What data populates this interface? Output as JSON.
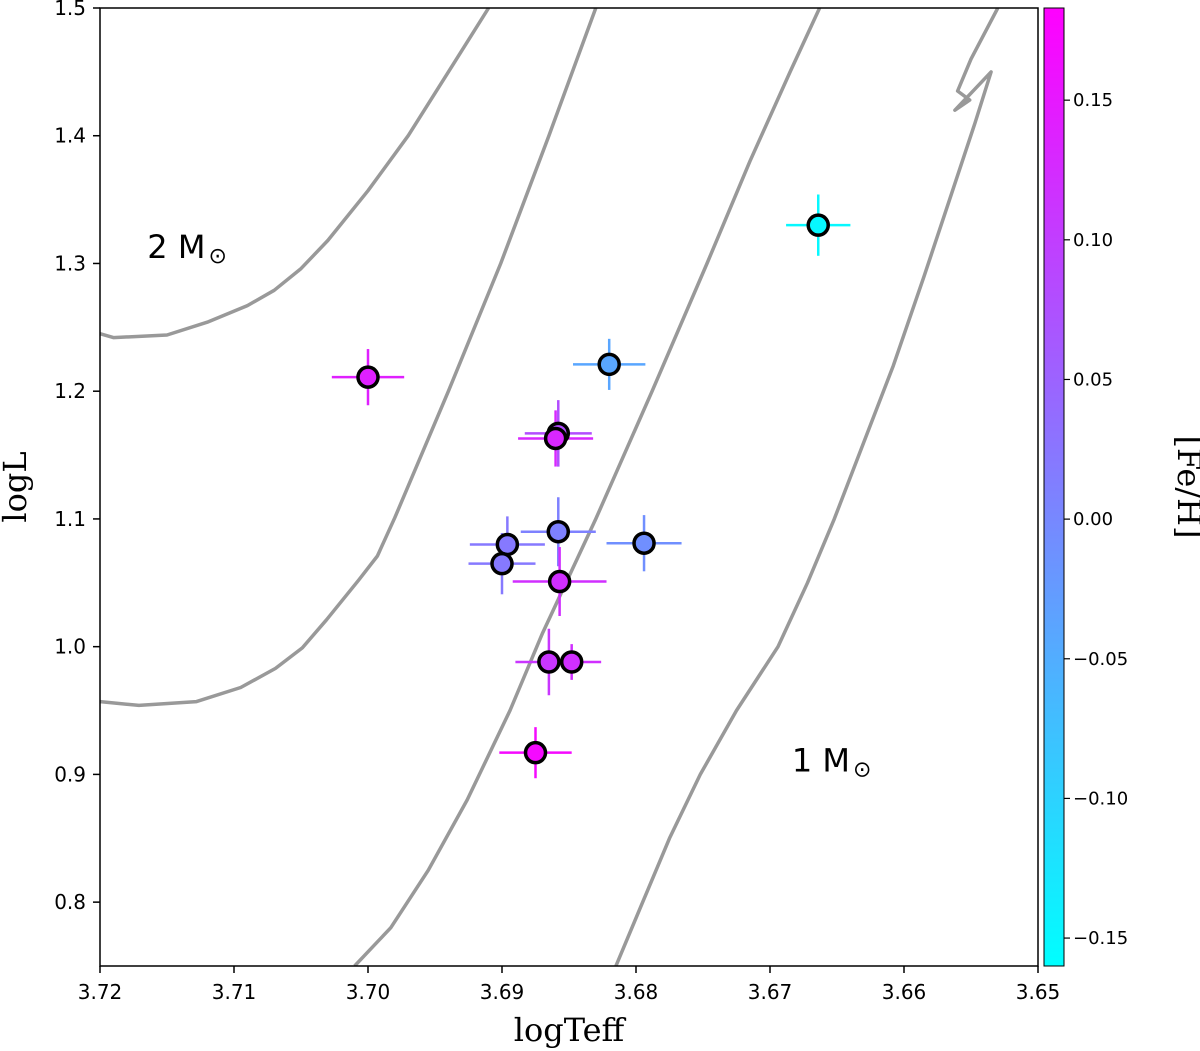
{
  "chart_data": {
    "type": "scatter",
    "title": "",
    "xlabel": "logTeff",
    "ylabel": "logL",
    "xlim": [
      3.72,
      3.65
    ],
    "ylim": [
      0.75,
      1.5
    ],
    "x_inverted": true,
    "xticks": [
      "3.72",
      "3.71",
      "3.70",
      "3.69",
      "3.68",
      "3.67",
      "3.66",
      "3.65"
    ],
    "yticks": [
      "0.8",
      "0.9",
      "1.0",
      "1.1",
      "1.2",
      "1.3",
      "1.4",
      "1.5"
    ],
    "colorbar": {
      "label": "[Fe/H]",
      "range": [
        -0.16,
        0.183
      ],
      "low_color": "#00ffff",
      "high_color": "#ff00ff",
      "ticks": [
        "−0.15",
        "−0.10",
        "−0.05",
        "0.00",
        "0.05",
        "0.10",
        "0.15"
      ]
    },
    "points": [
      {
        "logTeff": 3.7,
        "logL": 1.211,
        "xerr": 0.0027,
        "yerr": 0.022,
        "feh": 0.14
      },
      {
        "logTeff": 3.682,
        "logL": 1.221,
        "xerr": 0.0027,
        "yerr": 0.02,
        "feh": -0.04
      },
      {
        "logTeff": 3.6664,
        "logL": 1.33,
        "xerr": 0.0024,
        "yerr": 0.024,
        "feh": -0.15
      },
      {
        "logTeff": 3.6858,
        "logL": 1.167,
        "xerr": 0.0025,
        "yerr": 0.026,
        "feh": 0.08
      },
      {
        "logTeff": 3.686,
        "logL": 1.163,
        "xerr": 0.0028,
        "yerr": 0.022,
        "feh": 0.13
      },
      {
        "logTeff": 3.6858,
        "logL": 1.09,
        "xerr": 0.0028,
        "yerr": 0.027,
        "feh": 0.01
      },
      {
        "logTeff": 3.6896,
        "logL": 1.08,
        "xerr": 0.0028,
        "yerr": 0.022,
        "feh": 0.02
      },
      {
        "logTeff": 3.69,
        "logL": 1.065,
        "xerr": 0.0025,
        "yerr": 0.024,
        "feh": 0.02
      },
      {
        "logTeff": 3.6794,
        "logL": 1.081,
        "xerr": 0.0028,
        "yerr": 0.022,
        "feh": -0.01
      },
      {
        "logTeff": 3.6857,
        "logL": 1.051,
        "xerr": 0.0035,
        "yerr": 0.027,
        "feh": 0.12
      },
      {
        "logTeff": 3.6865,
        "logL": 0.988,
        "xerr": 0.0025,
        "yerr": 0.026,
        "feh": 0.11
      },
      {
        "logTeff": 3.6848,
        "logL": 0.988,
        "xerr": 0.0022,
        "yerr": 0.014,
        "feh": 0.12
      },
      {
        "logTeff": 3.6875,
        "logL": 0.917,
        "xerr": 0.0027,
        "yerr": 0.02,
        "feh": 0.17
      }
    ],
    "tracks": [
      {
        "name": "2 Msun",
        "points": [
          [
            3.72,
            1.245
          ],
          [
            3.719,
            1.242
          ],
          [
            3.715,
            1.244
          ],
          [
            3.712,
            1.254
          ],
          [
            3.709,
            1.267
          ],
          [
            3.707,
            1.279
          ],
          [
            3.705,
            1.296
          ],
          [
            3.703,
            1.318
          ],
          [
            3.7,
            1.357
          ],
          [
            3.697,
            1.4
          ],
          [
            3.694,
            1.45
          ],
          [
            3.691,
            1.5
          ]
        ]
      },
      {
        "name": "mid-1",
        "points": [
          [
            3.72,
            0.957
          ],
          [
            3.7171,
            0.954
          ],
          [
            3.7128,
            0.957
          ],
          [
            3.7095,
            0.968
          ],
          [
            3.7069,
            0.983
          ],
          [
            3.7049,
            0.999
          ],
          [
            3.7031,
            1.021
          ],
          [
            3.7007,
            1.052
          ],
          [
            3.6993,
            1.071
          ],
          [
            3.698,
            1.101
          ],
          [
            3.694,
            1.2
          ],
          [
            3.6901,
            1.3
          ],
          [
            3.6865,
            1.4
          ],
          [
            3.683,
            1.5
          ]
        ]
      },
      {
        "name": "mid-2",
        "points": [
          [
            3.701,
            0.75
          ],
          [
            3.6983,
            0.78
          ],
          [
            3.6955,
            0.825
          ],
          [
            3.6926,
            0.88
          ],
          [
            3.6894,
            0.95
          ],
          [
            3.687,
            1.01
          ],
          [
            3.683,
            1.1
          ],
          [
            3.6788,
            1.2
          ],
          [
            3.6747,
            1.3
          ],
          [
            3.6715,
            1.38
          ],
          [
            3.6685,
            1.45
          ],
          [
            3.6663,
            1.5
          ]
        ]
      },
      {
        "name": "1 Msun",
        "points": [
          [
            3.6815,
            0.75
          ],
          [
            3.6795,
            0.8
          ],
          [
            3.6775,
            0.85
          ],
          [
            3.6752,
            0.9
          ],
          [
            3.6725,
            0.95
          ],
          [
            3.6694,
            1.0
          ],
          [
            3.6672,
            1.05
          ],
          [
            3.6652,
            1.1
          ],
          [
            3.663,
            1.16
          ],
          [
            3.6608,
            1.22
          ],
          [
            3.6585,
            1.29
          ],
          [
            3.6566,
            1.35
          ],
          [
            3.6547,
            1.41
          ],
          [
            3.6535,
            1.45
          ],
          [
            3.6562,
            1.42
          ],
          [
            3.6551,
            1.428
          ],
          [
            3.656,
            1.435
          ],
          [
            3.655,
            1.46
          ],
          [
            3.653,
            1.5
          ]
        ]
      }
    ],
    "annotations": [
      {
        "text": "2 M",
        "symbol": "⊙",
        "logTeff": 3.7135,
        "logL": 1.302
      },
      {
        "text": "1 M",
        "symbol": "⊙",
        "logTeff": 3.6654,
        "logL": 0.9
      }
    ]
  }
}
